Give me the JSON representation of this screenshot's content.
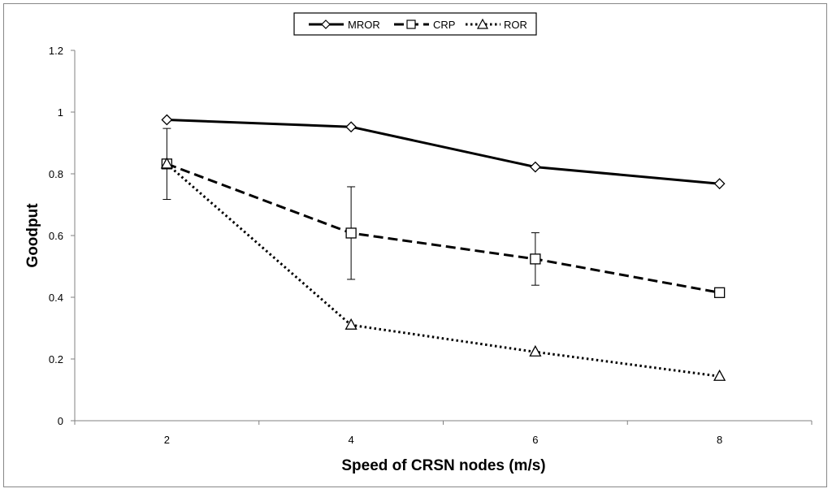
{
  "chart_data": {
    "type": "line",
    "title": "",
    "xlabel": "Speed of CRSN nodes (m/s)",
    "ylabel": "Goodput",
    "x": [
      2,
      4,
      6,
      8
    ],
    "x_tick_labels": [
      "2",
      "4",
      "6",
      "8"
    ],
    "xlim": [
      1,
      9
    ],
    "ylim": [
      0,
      1.2
    ],
    "y_ticks": [
      0,
      0.2,
      0.4,
      0.6,
      0.8,
      1,
      1.2
    ],
    "y_tick_labels": [
      "0",
      "0.2",
      "0.4",
      "0.6",
      "0.8",
      "1",
      "1.2"
    ],
    "grid": false,
    "legend_position": "top-center",
    "series": [
      {
        "name": "MROR",
        "values": [
          0.975,
          0.952,
          0.822,
          0.768
        ],
        "line_style": "solid",
        "marker": "diamond",
        "color": "#000000"
      },
      {
        "name": "CRP",
        "values": [
          0.832,
          0.608,
          0.524,
          0.415
        ],
        "error": [
          0.115,
          0.15,
          0.085,
          null
        ],
        "line_style": "dashed",
        "marker": "square",
        "color": "#000000"
      },
      {
        "name": "ROR",
        "values": [
          0.832,
          0.31,
          0.223,
          0.144
        ],
        "line_style": "dotted",
        "marker": "triangle",
        "color": "#000000"
      }
    ]
  }
}
